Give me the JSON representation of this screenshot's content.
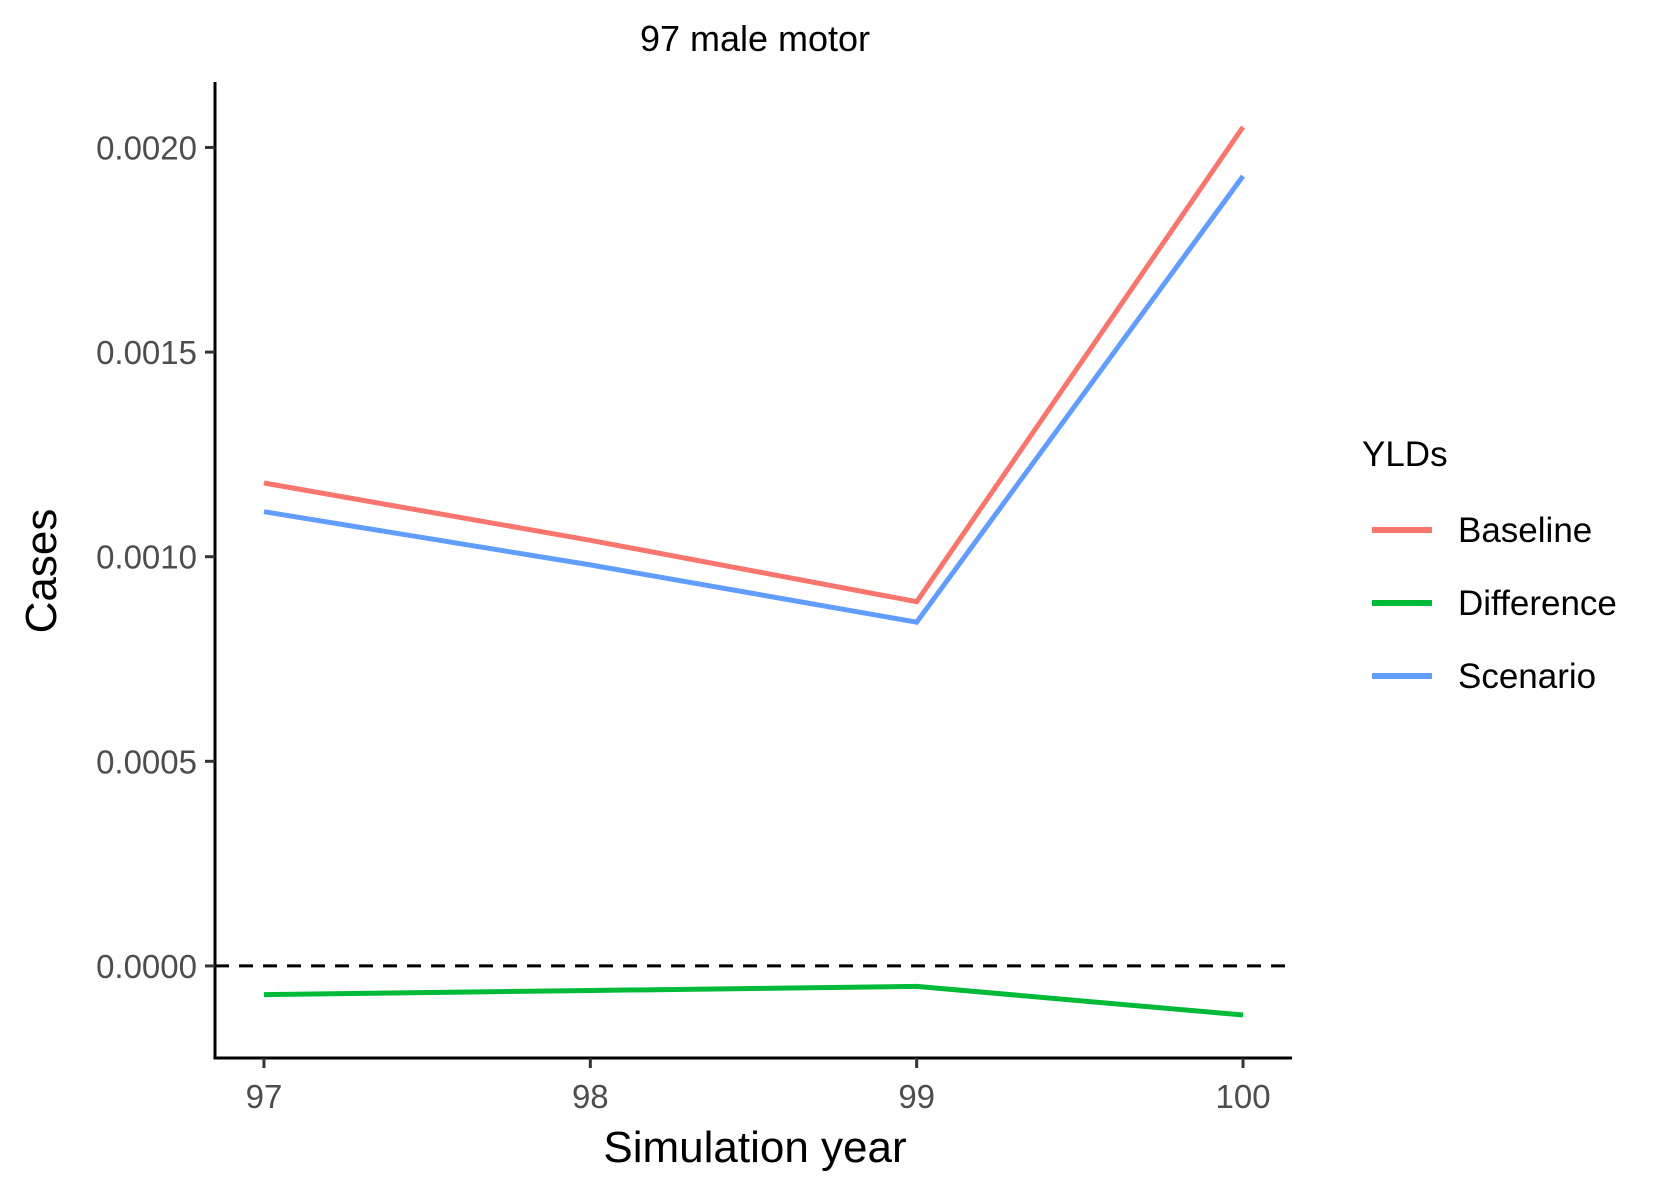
{
  "chart_data": {
    "type": "line",
    "title": "97 male motor",
    "xlabel": "Simulation year",
    "ylabel": "Cases",
    "x": [
      97,
      98,
      99,
      100
    ],
    "x_ticks": [
      "97",
      "98",
      "99",
      "100"
    ],
    "y_ticks": [
      {
        "value": 0.0,
        "label": "0.0000"
      },
      {
        "value": 0.0005,
        "label": "0.0005"
      },
      {
        "value": 0.001,
        "label": "0.0010"
      },
      {
        "value": 0.0015,
        "label": "0.0015"
      },
      {
        "value": 0.002,
        "label": "0.0020"
      }
    ],
    "xlim": [
      96.85,
      100.15
    ],
    "ylim": [
      -0.000225,
      0.00216
    ],
    "grid": false,
    "reference_line": {
      "y": 0.0,
      "style": "dashed",
      "color": "#000000"
    },
    "legend": {
      "title": "YLDs",
      "placement": "right"
    },
    "series": [
      {
        "name": "Baseline",
        "color": "#F8766D",
        "values": [
          0.00118,
          0.00104,
          0.00089,
          0.00205
        ]
      },
      {
        "name": "Difference",
        "color": "#00BA38",
        "values": [
          -7e-05,
          -6e-05,
          -5e-05,
          -0.00012
        ]
      },
      {
        "name": "Scenario",
        "color": "#619CFF",
        "values": [
          0.00111,
          0.00098,
          0.00084,
          0.00193
        ]
      }
    ]
  }
}
